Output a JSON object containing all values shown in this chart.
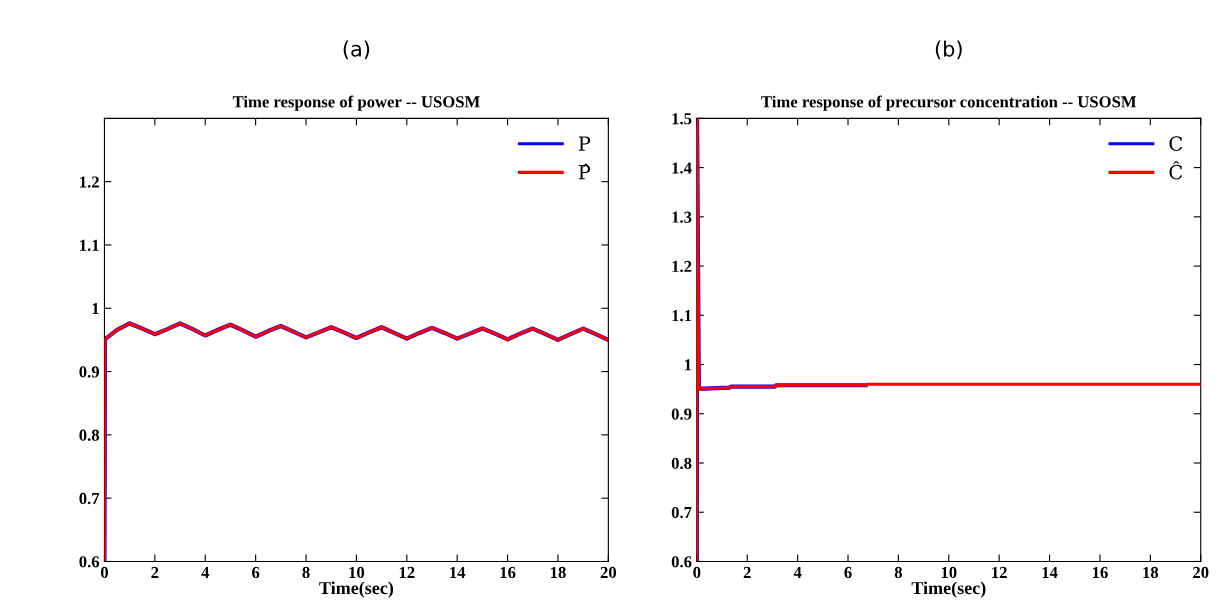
{
  "chart_data": [
    {
      "type": "line",
      "annotations": [
        "(a)"
      ],
      "title": "Time response of power -- USOSM",
      "xlabel": "Time(sec)",
      "xlim": [
        0,
        20
      ],
      "xticks": [
        0,
        2,
        4,
        6,
        8,
        10,
        12,
        14,
        16,
        18,
        20
      ],
      "ylim": [
        0.6,
        1.3
      ],
      "yticks": [
        0.6,
        0.7,
        0.8,
        0.9,
        1,
        1.1,
        1.2
      ],
      "legend": "top right",
      "grid": false,
      "x": [
        0,
        0.01,
        0.02,
        0.05,
        0.5,
        1,
        1.5,
        2,
        2.5,
        3,
        3.5,
        4,
        4.5,
        5,
        5.5,
        6,
        6.5,
        7,
        7.5,
        8,
        8.5,
        9,
        9.5,
        10,
        10.5,
        11,
        11.5,
        12,
        12.5,
        13,
        13.5,
        14,
        14.5,
        15,
        15.5,
        16,
        16.5,
        17,
        17.5,
        18,
        18.5,
        19,
        19.5,
        20
      ],
      "series": [
        {
          "name": "P",
          "color": "#0000ff",
          "values": [
            0.6,
            0.76,
            0.95,
            0.952,
            0.966,
            0.976,
            0.968,
            0.959,
            0.967,
            0.976,
            0.967,
            0.957,
            0.966,
            0.974,
            0.965,
            0.955,
            0.964,
            0.972,
            0.963,
            0.954,
            0.962,
            0.97,
            0.962,
            0.953,
            0.962,
            0.97,
            0.961,
            0.952,
            0.961,
            0.969,
            0.961,
            0.952,
            0.96,
            0.968,
            0.96,
            0.951,
            0.96,
            0.968,
            0.959,
            0.95,
            0.959,
            0.968,
            0.959,
            0.95
          ]
        },
        {
          "name": "P̂",
          "color": "#ff0000",
          "values": [
            0.6,
            0.76,
            0.95,
            0.952,
            0.966,
            0.976,
            0.968,
            0.959,
            0.967,
            0.976,
            0.967,
            0.957,
            0.966,
            0.974,
            0.965,
            0.955,
            0.964,
            0.972,
            0.963,
            0.954,
            0.962,
            0.97,
            0.962,
            0.953,
            0.962,
            0.97,
            0.961,
            0.952,
            0.961,
            0.969,
            0.961,
            0.952,
            0.96,
            0.968,
            0.96,
            0.951,
            0.96,
            0.968,
            0.959,
            0.95,
            0.959,
            0.968,
            0.959,
            0.95
          ]
        }
      ]
    },
    {
      "type": "line",
      "annotations": [
        "(b)"
      ],
      "title": "Time response of precursor concentration -- USOSM",
      "xlabel": "Time(sec)",
      "xlim": [
        0,
        20
      ],
      "xticks": [
        0,
        2,
        4,
        6,
        8,
        10,
        12,
        14,
        16,
        18,
        20
      ],
      "ylim": [
        0.6,
        1.5
      ],
      "yticks": [
        0.6,
        0.7,
        0.8,
        0.9,
        1,
        1.1,
        1.2,
        1.3,
        1.4,
        1.5
      ],
      "legend": "top right",
      "grid": false,
      "x": [
        0,
        0.01,
        0.08,
        0.3,
        1.3,
        1.35,
        3.1,
        3.15,
        6.7,
        6.75,
        20
      ],
      "series": [
        {
          "name": "C",
          "color": "#0000ff",
          "values": [
            0.6,
            1.5,
            0.951,
            0.951,
            0.953,
            0.955,
            0.955,
            0.958,
            0.958,
            null,
            null
          ]
        },
        {
          "name": "Ĉ",
          "color": "#ff0000",
          "values": [
            0.6,
            1.5,
            0.951,
            0.951,
            0.953,
            0.955,
            0.955,
            0.958,
            0.958,
            0.96,
            0.96
          ]
        }
      ]
    }
  ]
}
